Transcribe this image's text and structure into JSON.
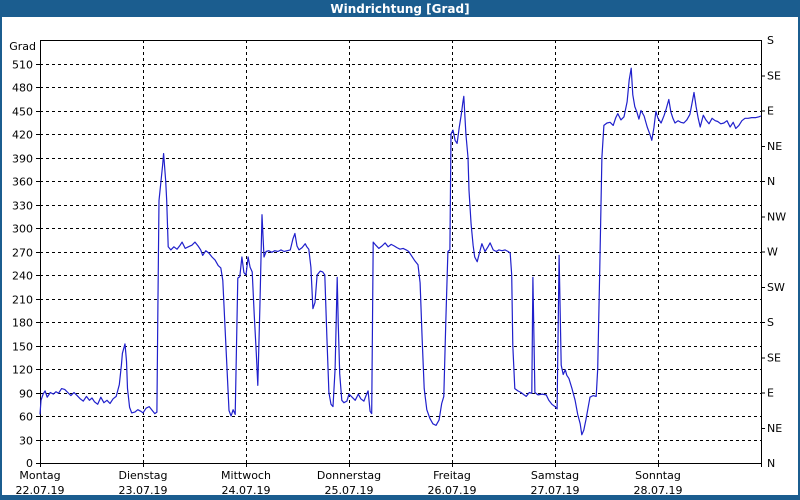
{
  "window": {
    "title": "Windrichtung [Grad]"
  },
  "colors": {
    "titlebar": "#1b5d8f",
    "border": "#1b5d8f",
    "line": "#2020cc",
    "background": "#ffffff",
    "grid": "#000000",
    "text": "#000000"
  },
  "chart_data": {
    "type": "line",
    "title": "Windrichtung [Grad]",
    "y_axis": {
      "unit_label": "Grad",
      "tick_min": 0,
      "tick_max": 510,
      "tick_step": 30
    },
    "ylim": [
      0,
      540
    ],
    "right_axis": {
      "compass_step_deg": 45,
      "labels": [
        "N",
        "NE",
        "E",
        "SE",
        "S",
        "SW",
        "W",
        "NW",
        "N",
        "NE",
        "E",
        "SE",
        "S"
      ]
    },
    "days_span": 7,
    "days": [
      {
        "name": "Montag",
        "date": "22.07.19"
      },
      {
        "name": "Dienstag",
        "date": "23.07.19"
      },
      {
        "name": "Mittwoch",
        "date": "24.07.19"
      },
      {
        "name": "Donnerstag",
        "date": "25.07.19"
      },
      {
        "name": "Freitag",
        "date": "26.07.19"
      },
      {
        "name": "Samstag",
        "date": "27.07.19"
      },
      {
        "name": "Sonntag",
        "date": "28.07.19"
      }
    ],
    "grid": "dashed",
    "legend": "none",
    "series": [
      {
        "name": "Windrichtung",
        "points": [
          [
            0.0,
            62
          ],
          [
            0.01,
            80
          ],
          [
            0.03,
            88
          ],
          [
            0.05,
            92
          ],
          [
            0.07,
            84
          ],
          [
            0.1,
            90
          ],
          [
            0.13,
            88
          ],
          [
            0.155,
            91
          ],
          [
            0.18,
            89
          ],
          [
            0.21,
            95
          ],
          [
            0.24,
            94
          ],
          [
            0.27,
            90
          ],
          [
            0.3,
            86
          ],
          [
            0.33,
            90
          ],
          [
            0.36,
            86
          ],
          [
            0.39,
            82
          ],
          [
            0.42,
            79
          ],
          [
            0.45,
            85
          ],
          [
            0.48,
            80
          ],
          [
            0.505,
            83
          ],
          [
            0.53,
            78
          ],
          [
            0.56,
            75
          ],
          [
            0.59,
            84
          ],
          [
            0.62,
            77
          ],
          [
            0.65,
            80
          ],
          [
            0.68,
            76
          ],
          [
            0.71,
            82
          ],
          [
            0.74,
            85
          ],
          [
            0.77,
            100
          ],
          [
            0.79,
            125
          ],
          [
            0.8,
            140
          ],
          [
            0.825,
            152
          ],
          [
            0.84,
            130
          ],
          [
            0.85,
            95
          ],
          [
            0.87,
            71
          ],
          [
            0.89,
            64
          ],
          [
            0.92,
            65
          ],
          [
            0.95,
            68
          ],
          [
            0.98,
            66
          ],
          [
            1.0,
            64
          ],
          [
            1.03,
            70
          ],
          [
            1.06,
            72
          ],
          [
            1.09,
            67
          ],
          [
            1.115,
            63
          ],
          [
            1.135,
            65
          ],
          [
            1.145,
            200
          ],
          [
            1.155,
            335
          ],
          [
            1.175,
            360
          ],
          [
            1.19,
            380
          ],
          [
            1.2,
            395
          ],
          [
            1.22,
            360
          ],
          [
            1.23,
            335
          ],
          [
            1.245,
            276
          ],
          [
            1.27,
            272
          ],
          [
            1.3,
            276
          ],
          [
            1.33,
            273
          ],
          [
            1.36,
            278
          ],
          [
            1.38,
            282
          ],
          [
            1.41,
            274
          ],
          [
            1.44,
            276
          ],
          [
            1.475,
            278
          ],
          [
            1.505,
            282
          ],
          [
            1.535,
            277
          ],
          [
            1.56,
            272
          ],
          [
            1.58,
            265
          ],
          [
            1.61,
            271
          ],
          [
            1.64,
            268
          ],
          [
            1.67,
            263
          ],
          [
            1.7,
            259
          ],
          [
            1.73,
            252
          ],
          [
            1.755,
            249
          ],
          [
            1.775,
            233
          ],
          [
            1.805,
            150
          ],
          [
            1.835,
            67
          ],
          [
            1.855,
            60
          ],
          [
            1.875,
            68
          ],
          [
            1.895,
            62
          ],
          [
            1.92,
            236
          ],
          [
            1.94,
            238
          ],
          [
            1.96,
            263
          ],
          [
            1.98,
            243
          ],
          [
            2.0,
            240
          ],
          [
            2.02,
            263
          ],
          [
            2.04,
            250
          ],
          [
            2.06,
            244
          ],
          [
            2.08,
            190
          ],
          [
            2.1,
            140
          ],
          [
            2.115,
            99
          ],
          [
            2.135,
            200
          ],
          [
            2.155,
            317
          ],
          [
            2.165,
            290
          ],
          [
            2.175,
            263
          ],
          [
            2.195,
            270
          ],
          [
            2.22,
            271
          ],
          [
            2.25,
            269
          ],
          [
            2.28,
            271
          ],
          [
            2.31,
            270
          ],
          [
            2.34,
            272
          ],
          [
            2.37,
            270
          ],
          [
            2.4,
            271
          ],
          [
            2.43,
            272
          ],
          [
            2.455,
            286
          ],
          [
            2.475,
            293
          ],
          [
            2.495,
            277
          ],
          [
            2.515,
            272
          ],
          [
            2.545,
            275
          ],
          [
            2.575,
            280
          ],
          [
            2.59,
            276
          ],
          [
            2.61,
            273
          ],
          [
            2.63,
            250
          ],
          [
            2.65,
            197
          ],
          [
            2.67,
            205
          ],
          [
            2.69,
            240
          ],
          [
            2.72,
            245
          ],
          [
            2.745,
            244
          ],
          [
            2.765,
            240
          ],
          [
            2.785,
            160
          ],
          [
            2.805,
            90
          ],
          [
            2.825,
            75
          ],
          [
            2.845,
            72
          ],
          [
            2.865,
            120
          ],
          [
            2.885,
            237
          ],
          [
            2.895,
            180
          ],
          [
            2.91,
            114
          ],
          [
            2.93,
            80
          ],
          [
            2.95,
            77
          ],
          [
            2.98,
            79
          ],
          [
            3.0,
            88
          ],
          [
            3.03,
            84
          ],
          [
            3.06,
            80
          ],
          [
            3.09,
            88
          ],
          [
            3.115,
            82
          ],
          [
            3.145,
            79
          ],
          [
            3.165,
            86
          ],
          [
            3.185,
            92
          ],
          [
            3.205,
            66
          ],
          [
            3.22,
            63
          ],
          [
            3.235,
            282
          ],
          [
            3.26,
            278
          ],
          [
            3.29,
            274
          ],
          [
            3.32,
            277
          ],
          [
            3.35,
            281
          ],
          [
            3.38,
            276
          ],
          [
            3.41,
            279
          ],
          [
            3.44,
            277
          ],
          [
            3.465,
            275
          ],
          [
            3.495,
            273
          ],
          [
            3.525,
            274
          ],
          [
            3.555,
            272
          ],
          [
            3.58,
            270
          ],
          [
            3.61,
            264
          ],
          [
            3.64,
            258
          ],
          [
            3.67,
            253
          ],
          [
            3.69,
            230
          ],
          [
            3.71,
            160
          ],
          [
            3.73,
            95
          ],
          [
            3.755,
            68
          ],
          [
            3.785,
            57
          ],
          [
            3.815,
            50
          ],
          [
            3.845,
            48
          ],
          [
            3.875,
            55
          ],
          [
            3.9,
            76
          ],
          [
            3.92,
            85
          ],
          [
            3.94,
            180
          ],
          [
            3.96,
            270
          ],
          [
            3.98,
            272
          ],
          [
            3.99,
            420
          ],
          [
            4.01,
            425
          ],
          [
            4.03,
            412
          ],
          [
            4.05,
            408
          ],
          [
            4.07,
            428
          ],
          [
            4.09,
            445
          ],
          [
            4.105,
            460
          ],
          [
            4.115,
            468
          ],
          [
            4.135,
            420
          ],
          [
            4.155,
            390
          ],
          [
            4.165,
            348
          ],
          [
            4.185,
            305
          ],
          [
            4.205,
            278
          ],
          [
            4.22,
            263
          ],
          [
            4.245,
            257
          ],
          [
            4.27,
            270
          ],
          [
            4.29,
            280
          ],
          [
            4.32,
            270
          ],
          [
            4.35,
            276
          ],
          [
            4.37,
            281
          ],
          [
            4.4,
            272
          ],
          [
            4.43,
            270
          ],
          [
            4.455,
            272
          ],
          [
            4.485,
            271
          ],
          [
            4.515,
            272
          ],
          [
            4.545,
            270
          ],
          [
            4.565,
            268
          ],
          [
            4.58,
            240
          ],
          [
            4.59,
            150
          ],
          [
            4.61,
            95
          ],
          [
            4.64,
            92
          ],
          [
            4.67,
            90
          ],
          [
            4.7,
            87
          ],
          [
            4.72,
            85
          ],
          [
            4.75,
            90
          ],
          [
            4.775,
            89
          ],
          [
            4.785,
            237
          ],
          [
            4.805,
            90
          ],
          [
            4.835,
            87
          ],
          [
            4.875,
            88
          ],
          [
            4.915,
            87
          ],
          [
            4.94,
            80
          ],
          [
            4.97,
            75
          ],
          [
            5.0,
            72
          ],
          [
            5.02,
            69
          ],
          [
            5.04,
            265
          ],
          [
            5.06,
            125
          ],
          [
            5.08,
            113
          ],
          [
            5.1,
            119
          ],
          [
            5.115,
            112
          ],
          [
            5.135,
            108
          ],
          [
            5.165,
            95
          ],
          [
            5.195,
            80
          ],
          [
            5.22,
            62
          ],
          [
            5.245,
            50
          ],
          [
            5.26,
            36
          ],
          [
            5.28,
            42
          ],
          [
            5.3,
            55
          ],
          [
            5.32,
            70
          ],
          [
            5.34,
            84
          ],
          [
            5.37,
            86
          ],
          [
            5.4,
            85
          ],
          [
            5.415,
            120
          ],
          [
            5.435,
            250
          ],
          [
            5.455,
            390
          ],
          [
            5.475,
            431
          ],
          [
            5.505,
            434
          ],
          [
            5.535,
            435
          ],
          [
            5.565,
            431
          ],
          [
            5.59,
            441
          ],
          [
            5.61,
            446
          ],
          [
            5.64,
            438
          ],
          [
            5.67,
            442
          ],
          [
            5.7,
            461
          ],
          [
            5.72,
            489
          ],
          [
            5.74,
            504
          ],
          [
            5.755,
            470
          ],
          [
            5.775,
            455
          ],
          [
            5.795,
            448
          ],
          [
            5.815,
            439
          ],
          [
            5.835,
            450
          ],
          [
            5.865,
            443
          ],
          [
            5.895,
            429
          ],
          [
            5.92,
            420
          ],
          [
            5.94,
            412
          ],
          [
            5.96,
            428
          ],
          [
            5.98,
            449
          ],
          [
            6.0,
            440
          ],
          [
            6.02,
            436
          ],
          [
            6.03,
            434
          ],
          [
            6.06,
            444
          ],
          [
            6.08,
            452
          ],
          [
            6.105,
            464
          ],
          [
            6.125,
            448
          ],
          [
            6.145,
            440
          ],
          [
            6.165,
            434
          ],
          [
            6.195,
            437
          ],
          [
            6.22,
            435
          ],
          [
            6.25,
            434
          ],
          [
            6.28,
            438
          ],
          [
            6.31,
            445
          ],
          [
            6.33,
            459
          ],
          [
            6.35,
            473
          ],
          [
            6.37,
            455
          ],
          [
            6.39,
            440
          ],
          [
            6.41,
            429
          ],
          [
            6.44,
            444
          ],
          [
            6.465,
            438
          ],
          [
            6.495,
            433
          ],
          [
            6.525,
            440
          ],
          [
            6.555,
            437
          ],
          [
            6.58,
            436
          ],
          [
            6.61,
            433
          ],
          [
            6.64,
            434
          ],
          [
            6.67,
            437
          ],
          [
            6.7,
            429
          ],
          [
            6.73,
            435
          ],
          [
            6.755,
            427
          ],
          [
            6.785,
            431
          ],
          [
            6.815,
            437
          ],
          [
            6.845,
            440
          ],
          [
            6.875,
            440
          ],
          [
            6.91,
            441
          ],
          [
            6.95,
            441
          ],
          [
            6.98,
            442
          ],
          [
            7.0,
            443
          ]
        ]
      }
    ]
  }
}
